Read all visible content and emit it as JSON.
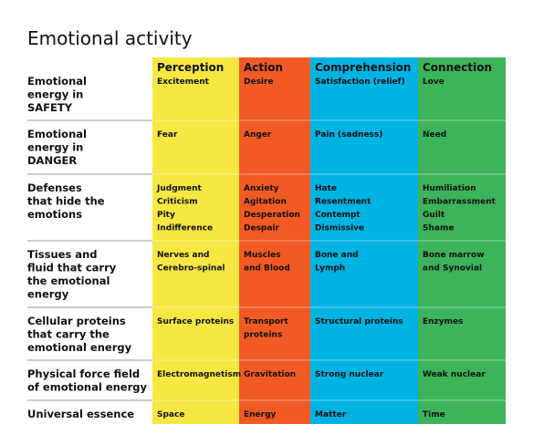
{
  "header": {
    "title": "Emotional activity"
  },
  "table": {
    "columns": [
      "Perception",
      "Action",
      "Comprehension",
      "Connection"
    ],
    "rows": [
      {
        "label": [
          "Emotional",
          "energy in",
          "SAFETY"
        ],
        "cells": [
          [
            "Excitement"
          ],
          [
            "Desire"
          ],
          [
            "Satisfaction (relief)"
          ],
          [
            "Love"
          ]
        ]
      },
      {
        "label": [
          "Emotional",
          "energy in",
          "DANGER"
        ],
        "cells": [
          [
            "Fear"
          ],
          [
            "Anger"
          ],
          [
            "Pain (sadness)"
          ],
          [
            "Need"
          ]
        ]
      },
      {
        "label": [
          "Defenses",
          "that hide the",
          "emotions"
        ],
        "cells": [
          [
            "Judgment",
            "Criticism",
            "Pity",
            "Indifference"
          ],
          [
            "Anxiety",
            "Agitation",
            "Desperation",
            "Despair"
          ],
          [
            "Hate",
            "Resentment",
            "Contempt",
            "Dismissive"
          ],
          [
            "Humiliation",
            "Embarrassment",
            "Guilt",
            "Shame"
          ]
        ]
      },
      {
        "label": [
          "Tissues and",
          "fluid that carry",
          "the emotional",
          "energy"
        ],
        "cells": [
          [
            "Nerves and",
            "Cerebro-spinal"
          ],
          [
            "Muscles",
            "and Blood"
          ],
          [
            "Bone and",
            "Lymph"
          ],
          [
            "Bone marrow",
            "and Synovial"
          ]
        ]
      },
      {
        "label": [
          "Cellular proteins",
          "that carry the",
          "emotional energy"
        ],
        "cells": [
          [
            "Surface proteins"
          ],
          [
            "Transport",
            "proteins"
          ],
          [
            "Structural proteins"
          ],
          [
            "Enzymes"
          ]
        ]
      },
      {
        "label": [
          "Physical force field",
          "of emotional energy"
        ],
        "cells": [
          [
            "Electromagnetism"
          ],
          [
            "Gravitation"
          ],
          [
            "Strong nuclear"
          ],
          [
            "Weak nuclear"
          ]
        ]
      },
      {
        "label": [
          "Universal essence"
        ],
        "cells": [
          [
            "Space"
          ],
          [
            "Energy"
          ],
          [
            "Matter"
          ],
          [
            "Time"
          ]
        ]
      }
    ]
  }
}
